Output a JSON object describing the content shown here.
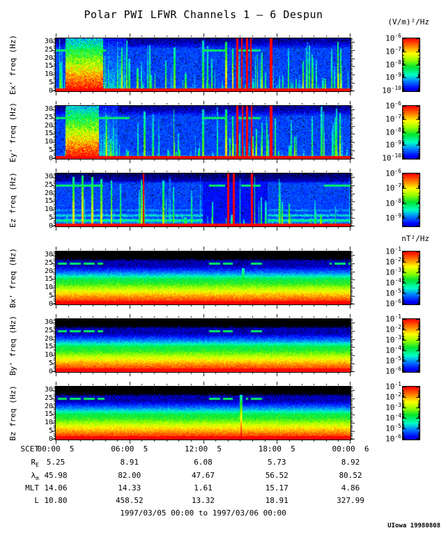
{
  "title": "Polar PWI LFWR Channels 1 — 6 Despun",
  "footer": "1997/03/05 00:00 to 1997/03/06 00:00",
  "credit": "UIowa 19980808",
  "colors": {
    "background": "#ffffff",
    "text": "#000000",
    "frame": "#000000",
    "palette_low": "#0000ff",
    "palette_mid": "#00e000",
    "palette_high": "#ff0000",
    "below_min": "#000000"
  },
  "chart_data": {
    "type": "heatmap",
    "subtype": "spectrogram",
    "title": "Polar PWI LFWR Channels 1 — 6 Despun",
    "time_range": "1997/03/05 00:00 to 1997/03/06 00:00",
    "units": {
      "electric": "(V/m)²/Hz",
      "magnetic": "nT²/Hz"
    },
    "layout_hints": {
      "colorbar_position": "right",
      "panels_stacked": 6,
      "grid": "off",
      "x_is_time_hours": [
        0,
        24
      ]
    },
    "freq_axis": {
      "min": 0,
      "max": 32,
      "unit": "Hz",
      "major_ticks": [
        0,
        5,
        10,
        15,
        20,
        25,
        30
      ]
    },
    "time_axis": {
      "name": "SCET",
      "tick_labels": [
        "00:00  5",
        "06:00  5",
        "12:00  5",
        "18:00  5",
        "00:00  6"
      ],
      "rows": [
        {
          "label": "R",
          "sub": "E",
          "values": [
            "5.25",
            "8.91",
            "6.08",
            "5.73",
            "8.92"
          ]
        },
        {
          "label": "λ",
          "sub": "m",
          "values": [
            "45.98",
            "82.00",
            "47.67",
            "56.52",
            "80.52"
          ]
        },
        {
          "label": "MLT",
          "sub": "",
          "values": [
            "14.06",
            "14.33",
            "1.61",
            "15.17",
            "4.86"
          ]
        },
        {
          "label": "L",
          "sub": "",
          "values": [
            "10.80",
            "458.52",
            "13.32",
            "18.91",
            "327.99"
          ]
        }
      ]
    },
    "panels": [
      {
        "id": "ex",
        "label": "Ex' freq (Hz)",
        "kind": "E",
        "seed": 11,
        "streaks": 90,
        "dashed": false,
        "blob": {
          "t0": 0.033,
          "t1": 0.16,
          "ext": 0.24
        },
        "line25": [
          [
            0.0,
            0.17
          ],
          [
            0.5,
            0.575
          ],
          [
            0.615,
            0.695
          ]
        ],
        "events": [
          [
            0.578,
            3,
            30,
            0.85
          ],
          [
            0.6,
            2,
            26,
            0.8
          ],
          [
            0.615,
            3,
            32,
            1.2
          ],
          [
            0.632,
            2,
            32,
            1.15
          ],
          [
            0.648,
            3,
            32,
            1.2
          ],
          [
            0.663,
            2,
            32,
            1.1
          ],
          [
            0.731,
            4,
            32,
            1.25
          ],
          [
            0.24,
            2,
            31,
            0.62
          ],
          [
            0.32,
            2,
            28,
            0.58
          ],
          [
            0.5,
            3,
            31,
            0.6
          ],
          [
            0.7,
            2,
            24,
            0.7
          ],
          [
            0.79,
            2,
            26,
            0.55
          ],
          [
            0.815,
            2,
            22,
            0.5
          ],
          [
            0.86,
            2,
            28,
            0.6
          ],
          [
            0.885,
            2,
            20,
            0.5
          ],
          [
            0.935,
            2,
            26,
            0.55
          ],
          [
            0.958,
            2,
            30,
            0.75
          ]
        ],
        "colorbar": {
          "exps": [
            -6,
            -7,
            -8,
            -9,
            -10
          ],
          "min": -10,
          "max": -6
        }
      },
      {
        "id": "ey",
        "label": "Ey' freq (Hz)",
        "kind": "E",
        "seed": 22,
        "streaks": 85,
        "dashed": false,
        "blob": {
          "t0": 0.033,
          "t1": 0.145,
          "ext": 0.21
        },
        "line25": [
          [
            0.0,
            0.25
          ],
          [
            0.5,
            0.575
          ],
          [
            0.615,
            0.695
          ]
        ],
        "events": [
          [
            0.578,
            3,
            30,
            0.8
          ],
          [
            0.6,
            2,
            26,
            0.75
          ],
          [
            0.617,
            3,
            32,
            1.2
          ],
          [
            0.633,
            2,
            32,
            1.15
          ],
          [
            0.65,
            3,
            32,
            1.2
          ],
          [
            0.665,
            2,
            32,
            1.1
          ],
          [
            0.731,
            4,
            32,
            1.25
          ],
          [
            0.245,
            2,
            30,
            0.6
          ],
          [
            0.33,
            2,
            27,
            0.55
          ],
          [
            0.5,
            3,
            30,
            0.6
          ],
          [
            0.7,
            2,
            22,
            0.65
          ],
          [
            0.8,
            2,
            24,
            0.5
          ],
          [
            0.87,
            2,
            26,
            0.55
          ],
          [
            0.91,
            2,
            18,
            0.45
          ],
          [
            0.94,
            2,
            22,
            0.5
          ],
          [
            0.965,
            2,
            28,
            0.7
          ]
        ],
        "colorbar": {
          "exps": [
            -6,
            -7,
            -8,
            -9,
            -10
          ],
          "min": -10,
          "max": -6
        }
      },
      {
        "id": "ez",
        "label": "Ez freq (Hz)",
        "kind": "E3",
        "seed": 33,
        "streaks": 45,
        "dashed": false,
        "dark": [
          0.5,
          0.72
        ],
        "line25": [
          [
            0.0,
            0.16
          ],
          [
            0.52,
            0.575
          ],
          [
            0.63,
            0.695
          ],
          [
            0.91,
            1.0
          ]
        ],
        "events": [
          [
            0.298,
            2,
            32,
            1.15
          ],
          [
            0.585,
            3,
            32,
            1.3
          ],
          [
            0.603,
            3,
            32,
            1.3
          ],
          [
            0.665,
            3,
            32,
            1.25
          ],
          [
            0.06,
            3,
            30,
            0.8
          ],
          [
            0.09,
            3,
            31,
            0.85
          ],
          [
            0.125,
            3,
            30,
            0.8
          ],
          [
            0.155,
            3,
            29,
            0.75
          ],
          [
            0.19,
            2,
            28,
            0.7
          ],
          [
            0.22,
            2,
            26,
            0.6
          ],
          [
            0.3,
            2,
            20,
            0.55
          ],
          [
            0.4,
            2,
            24,
            0.6
          ],
          [
            0.46,
            2,
            22,
            0.55
          ],
          [
            0.76,
            2,
            18,
            0.5
          ],
          [
            0.88,
            2,
            16,
            0.5
          ]
        ],
        "colorbar": {
          "exps": [
            -6,
            -7,
            -8,
            -9
          ],
          "min": -9.5,
          "max": -6
        }
      },
      {
        "id": "bx",
        "label": "Bx' freq (Hz)",
        "kind": "B",
        "seed": 44,
        "streaks": 0,
        "dashed": true,
        "line25": [
          [
            0.005,
            0.16
          ],
          [
            0.52,
            0.6
          ],
          [
            0.655,
            0.7
          ],
          [
            0.93,
            1.0
          ]
        ],
        "spikes": [
          [
            0.635,
            22,
            0.5
          ],
          [
            0.755,
            18,
            0.4
          ]
        ],
        "events": [],
        "colorbar": {
          "exps": [
            -1,
            -2,
            -3,
            -4,
            -5,
            -6
          ],
          "min": -6,
          "max": -1
        }
      },
      {
        "id": "by",
        "label": "By' freq (Hz)",
        "kind": "B",
        "seed": 55,
        "streaks": 0,
        "dashed": true,
        "line25": [
          [
            0.005,
            0.16
          ],
          [
            0.52,
            0.6
          ],
          [
            0.655,
            0.7
          ]
        ],
        "spikes": [
          [
            0.635,
            12,
            0.35
          ]
        ],
        "events": [],
        "colorbar": {
          "exps": [
            -1,
            -2,
            -3,
            -4,
            -5,
            -6
          ],
          "min": -6,
          "max": -1
        }
      },
      {
        "id": "bz",
        "label": "Bz freq (Hz)",
        "kind": "B",
        "seed": 66,
        "streaks": 0,
        "dashed": true,
        "line25": [
          [
            0.005,
            0.165
          ],
          [
            0.52,
            0.6
          ],
          [
            0.645,
            0.7
          ]
        ],
        "spikes": [
          [
            0.628,
            27,
            0.8
          ],
          [
            0.74,
            14,
            0.4
          ]
        ],
        "events": [],
        "colorbar": {
          "exps": [
            -1,
            -2,
            -3,
            -4,
            -5,
            -6
          ],
          "min": -6,
          "max": -1
        }
      }
    ]
  }
}
